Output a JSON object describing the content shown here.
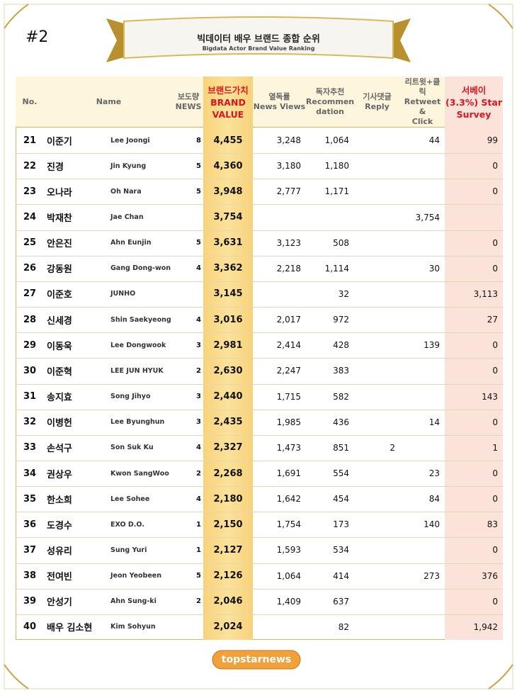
{
  "header": {
    "label": "#2",
    "title": "빅데이터 배우 브랜드 종합 순위",
    "subtitle": "Bigdata Actor Brand Value Ranking"
  },
  "table": {
    "columns": [
      "No.",
      "Name",
      "보도량\nNEWS",
      "브랜드가치\nBRAND\nVALUE",
      "열독률\nNews Views",
      "독자추천\nRecommen\ndation",
      "기사댓글\nReply",
      "리트윗+클\n릭\nRetweet &\nClick",
      "서베이\n(3.3%) Star\nSurvey"
    ],
    "rows": [
      [
        "21",
        "이준기",
        "Lee Joongi",
        "8",
        "4,455",
        "3,248",
        "1,064",
        null,
        "44",
        "99"
      ],
      [
        "22",
        "진경",
        "Jin Kyung",
        "5",
        "4,360",
        "3,180",
        "1,180",
        null,
        null,
        "0"
      ],
      [
        "23",
        "오나라",
        "Oh Nara",
        "5",
        "3,948",
        "2,777",
        "1,171",
        null,
        null,
        "0"
      ],
      [
        "24",
        "박재찬",
        "Jae Chan",
        null,
        "3,754",
        null,
        null,
        null,
        "3,754",
        null
      ],
      [
        "25",
        "안은진",
        "Ahn Eunjin",
        "5",
        "3,631",
        "3,123",
        "508",
        null,
        null,
        "0"
      ],
      [
        "26",
        "강동원",
        "Gang Dong-won",
        "4",
        "3,362",
        "2,218",
        "1,114",
        null,
        "30",
        "0"
      ],
      [
        "27",
        "이준호",
        "JUNHO",
        null,
        "3,145",
        null,
        "32",
        null,
        null,
        "3,113"
      ],
      [
        "28",
        "신세경",
        "Shin Saekyeong",
        "4",
        "3,016",
        "2,017",
        "972",
        null,
        null,
        "27"
      ],
      [
        "29",
        "이동욱",
        "Lee Dongwook",
        "3",
        "2,981",
        "2,414",
        "428",
        null,
        "139",
        "0"
      ],
      [
        "30",
        "이준혁",
        "LEE JUN HYUK",
        "2",
        "2,630",
        "2,247",
        "383",
        null,
        null,
        "0"
      ],
      [
        "31",
        "송지효",
        "Song Jihyo",
        "3",
        "2,440",
        "1,715",
        "582",
        null,
        null,
        "143"
      ],
      [
        "32",
        "이병헌",
        "Lee Byunghun",
        "3",
        "2,435",
        "1,985",
        "436",
        null,
        "14",
        "0"
      ],
      [
        "33",
        "손석구",
        "Son Suk Ku",
        "4",
        "2,327",
        "1,473",
        "851",
        "2",
        null,
        "1"
      ],
      [
        "34",
        "권상우",
        "Kwon SangWoo",
        "2",
        "2,268",
        "1,691",
        "554",
        null,
        "23",
        "0"
      ],
      [
        "35",
        "한소희",
        "Lee Sohee",
        "4",
        "2,180",
        "1,642",
        "454",
        null,
        "84",
        "0"
      ],
      [
        "36",
        "도경수",
        "EXO D.O.",
        "1",
        "2,150",
        "1,754",
        "173",
        null,
        "140",
        "83"
      ],
      [
        "37",
        "성유리",
        "Sung Yuri",
        "1",
        "2,127",
        "1,593",
        "534",
        null,
        null,
        "0"
      ],
      [
        "38",
        "전여빈",
        "Jeon Yeobeen",
        "5",
        "2,126",
        "1,064",
        "414",
        null,
        "273",
        "376"
      ],
      [
        "39",
        "안성기",
        "Ahn Sung-ki",
        "2",
        "2,046",
        "1,409",
        "637",
        null,
        null,
        "0"
      ],
      [
        "40",
        "배우 김소현",
        "Kim Sohyun",
        null,
        "2,024",
        null,
        "82",
        null,
        null,
        "1,942"
      ]
    ]
  },
  "footer": {
    "logo": "topstarnews"
  }
}
